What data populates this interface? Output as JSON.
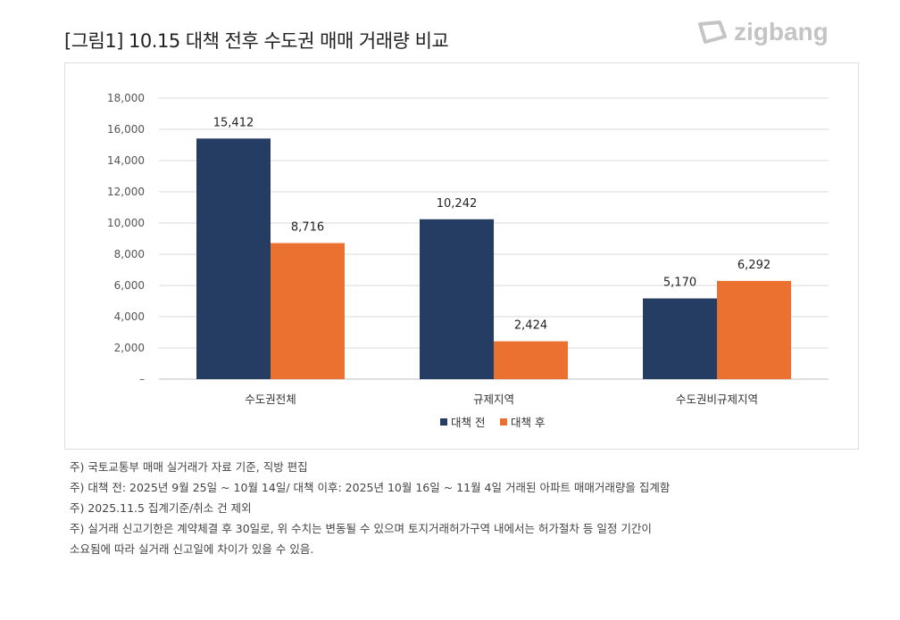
{
  "title": "[그림1] 10.15 대책 전후 수도권 매매 거래량 비교",
  "logo": "zigbang",
  "chart_data": {
    "type": "bar",
    "categories": [
      "수도권전체",
      "규제지역",
      "수도권비규제지역"
    ],
    "series": [
      {
        "name": "대책 전",
        "color": "#253d63",
        "values": [
          15412,
          10242,
          5170
        ]
      },
      {
        "name": "대책 후",
        "color": "#eb7131",
        "values": [
          8716,
          2424,
          6292
        ]
      }
    ],
    "data_labels": [
      [
        "15,412",
        "10,242",
        "5,170"
      ],
      [
        "8,716",
        "2,424",
        "6,292"
      ]
    ],
    "ylim": [
      0,
      18000
    ],
    "yticks": [
      "–",
      "2,000",
      "4,000",
      "6,000",
      "8,000",
      "10,000",
      "12,000",
      "14,000",
      "16,000",
      "18,000"
    ],
    "grid": true,
    "legend": "bottom"
  },
  "notes": [
    "주) 국토교통부 매매 실거래가 자료 기준, 직방 편집",
    "주) 대책 전: 2025년 9월 25일 ~ 10월 14일/ 대책 이후: 2025년 10월 16일 ~ 11월 4일 거래된 아파트 매매거래량을 집계함",
    "주) 2025.11.5 집계기준/취소 건 제외",
    "주) 실거래 신고기한은 계약체결 후 30일로, 위 수치는 변동될 수 있으며 토지거래허가구역 내에서는 허가절차 등 일정 기간이",
    "소요됨에 따라 실거래 신고일에 차이가 있을 수 있음."
  ]
}
